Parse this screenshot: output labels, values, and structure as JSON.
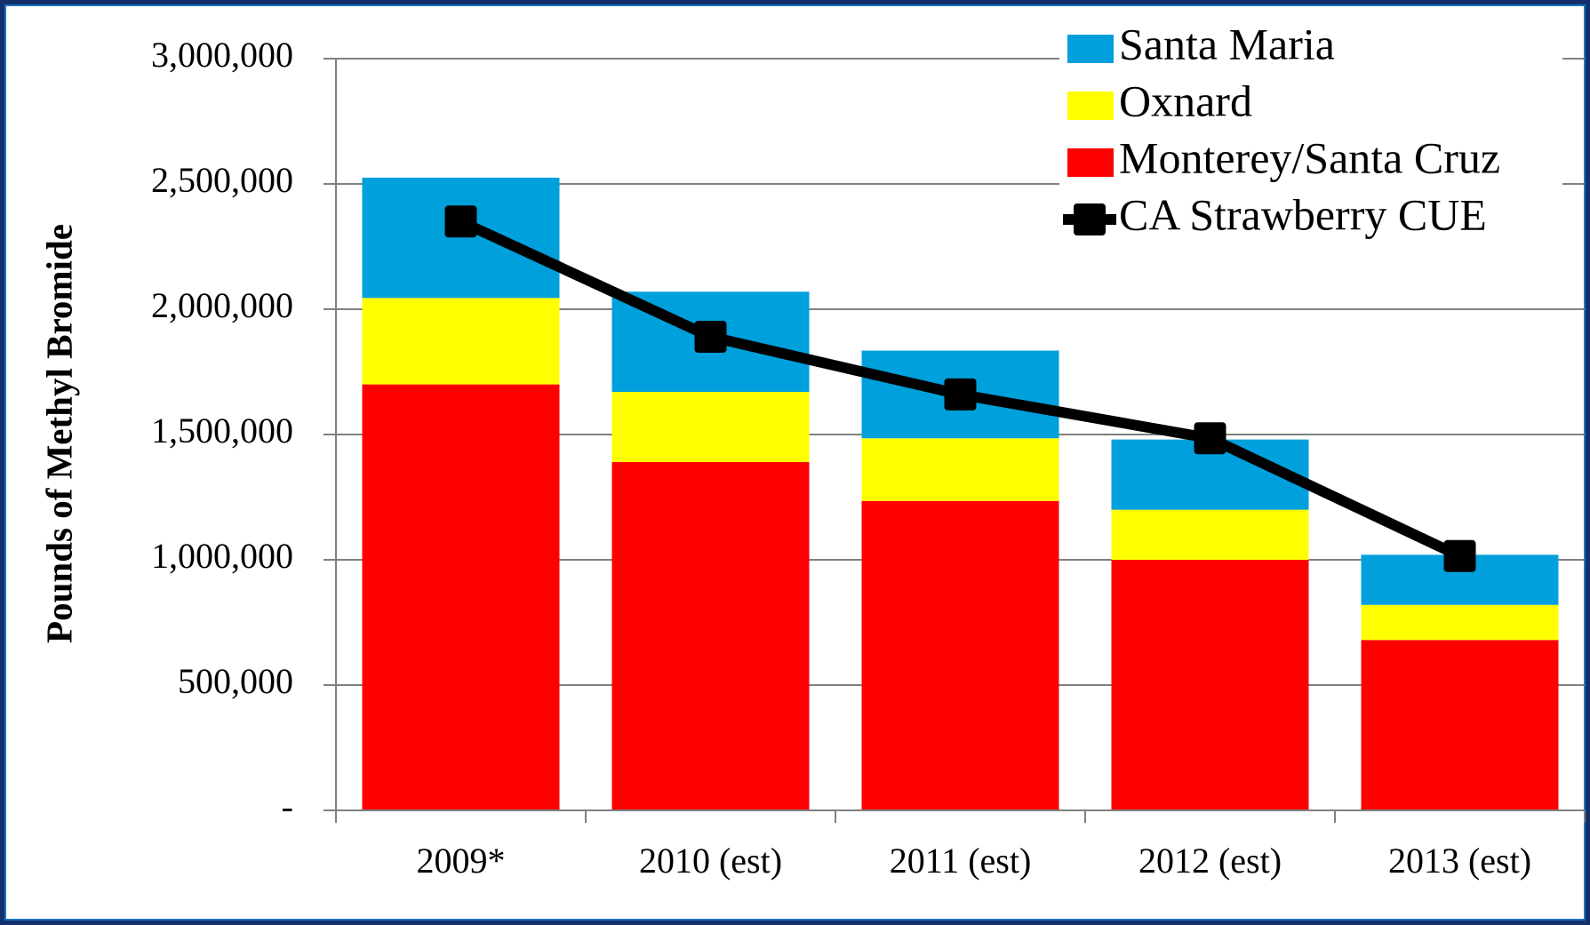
{
  "chart_data": {
    "type": "stacked-bar-line",
    "y_axis_label": "Pounds of Methyl Bromide",
    "categories": [
      "2009*",
      "2010 (est)",
      "2011 (est)",
      "2012 (est)",
      "2013 (est)"
    ],
    "series": [
      {
        "name": "Monterey/Santa Cruz",
        "type": "bar",
        "color": "#ff0000",
        "values": [
          1700000,
          1390000,
          1235000,
          1000000,
          680000
        ]
      },
      {
        "name": "Oxnard",
        "type": "bar",
        "color": "#ffff00",
        "values": [
          345000,
          280000,
          250000,
          200000,
          140000
        ]
      },
      {
        "name": "Santa Maria",
        "type": "bar",
        "color": "#00a0dc",
        "values": [
          480000,
          400000,
          350000,
          280000,
          200000
        ]
      },
      {
        "name": "CA Strawberry CUE",
        "type": "line",
        "color": "#000000",
        "values": [
          2350000,
          1890000,
          1660000,
          1485000,
          1015000
        ]
      }
    ],
    "ylim": [
      0,
      3000000
    ],
    "yticks": [
      {
        "value": 0,
        "label": "-"
      },
      {
        "value": 500000,
        "label": "500,000"
      },
      {
        "value": 1000000,
        "label": "1,000,000"
      },
      {
        "value": 1500000,
        "label": "1,500,000"
      },
      {
        "value": 2000000,
        "label": "2,000,000"
      },
      {
        "value": 2500000,
        "label": "2,500,000"
      },
      {
        "value": 3000000,
        "label": "3,000,000"
      }
    ],
    "grid": true,
    "legend": "top-right"
  }
}
